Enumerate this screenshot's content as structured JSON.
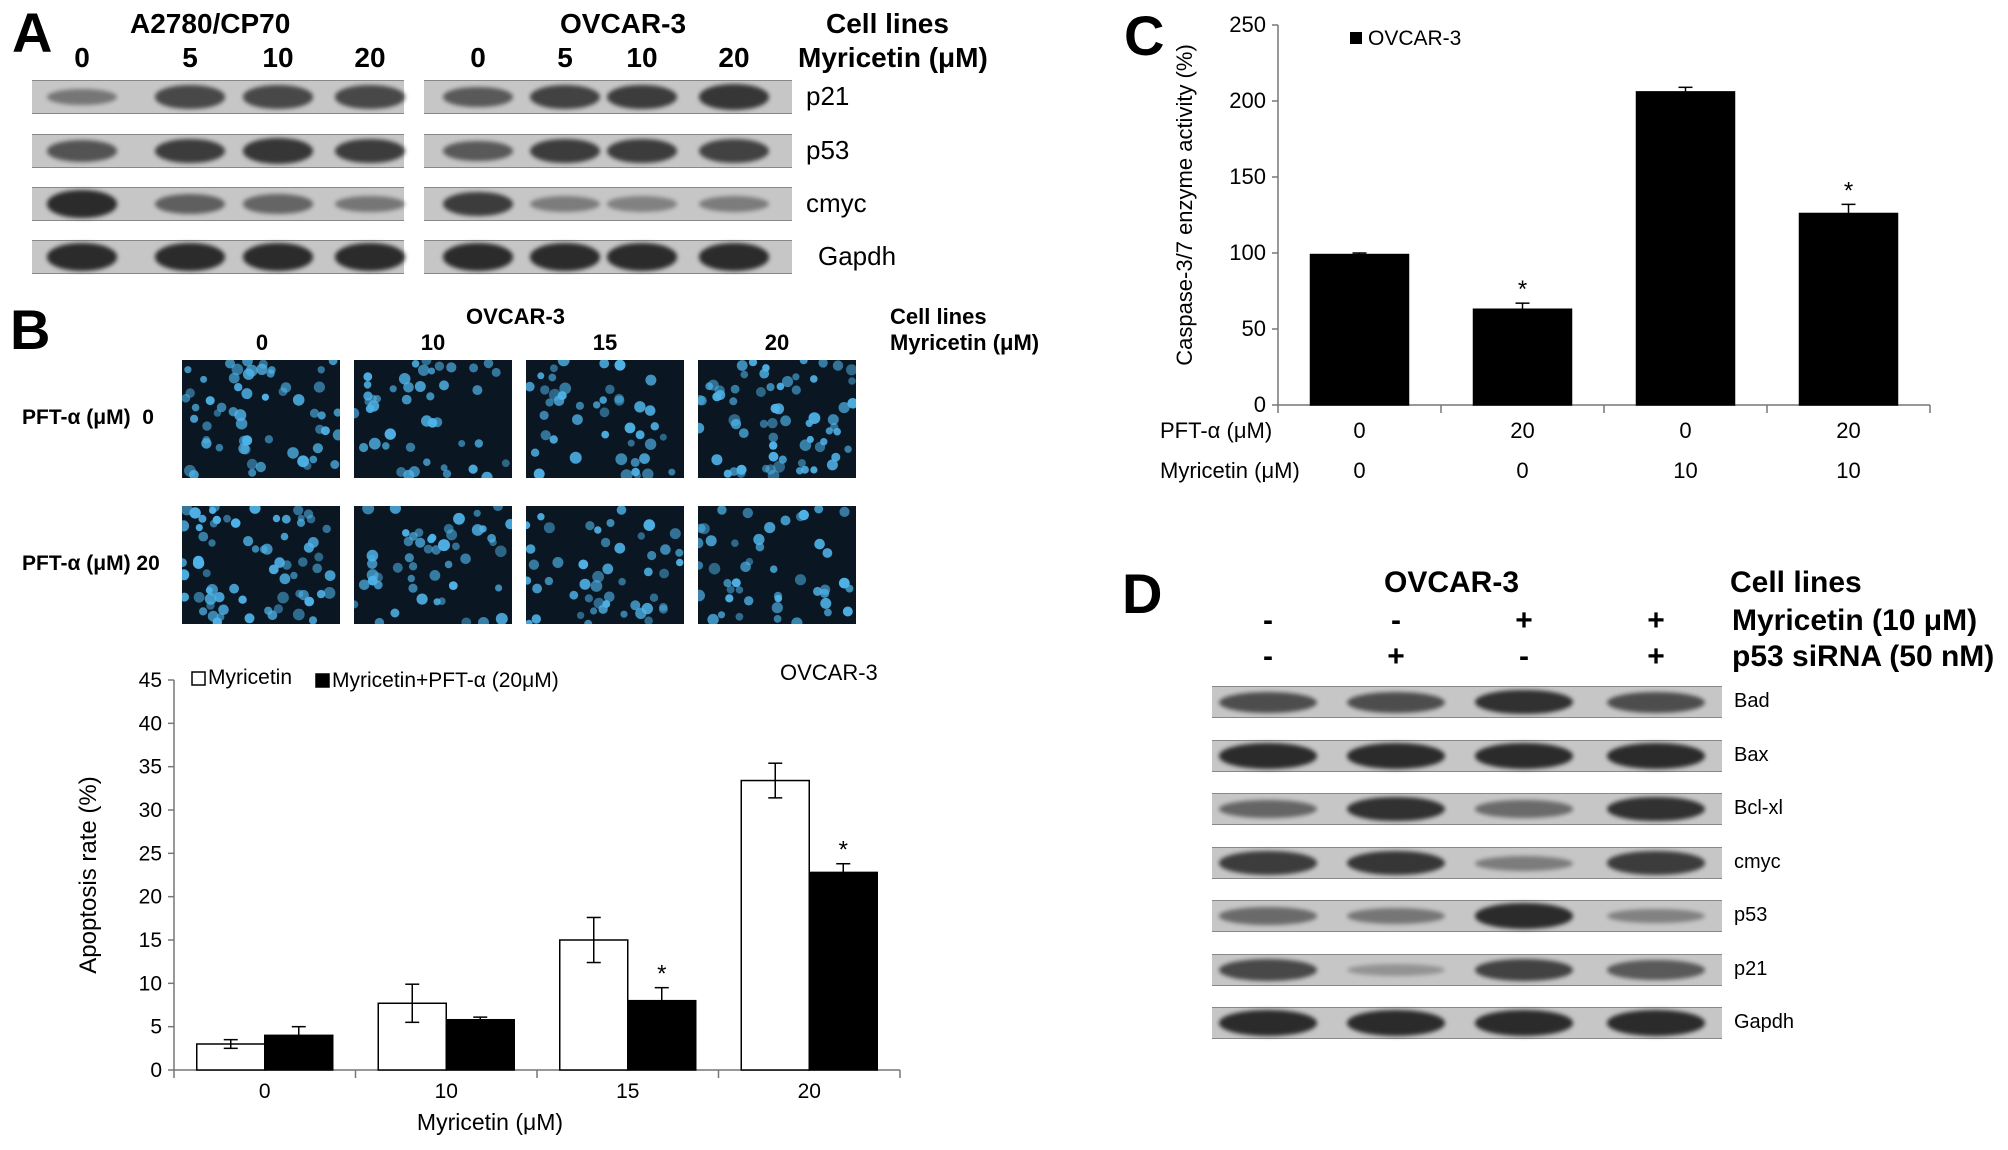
{
  "colors": {
    "blot_bg": "#c6c6c6",
    "band": "#2b2b2b",
    "cell": "#4fb3e8",
    "micro_bg": "#0a1622",
    "filled": "#000000",
    "open": "#ffffff"
  },
  "panel_a": {
    "letter": "A",
    "group1": "A2780/CP70",
    "group2": "OVCAR-3",
    "cell_lines_label": "Cell lines",
    "dose_label": "Myricetin (μM)",
    "doses": [
      "0",
      "5",
      "10",
      "20"
    ],
    "rows": [
      {
        "name": "p21",
        "g1": [
          0.35,
          0.75,
          0.75,
          0.75
        ],
        "g2": [
          0.6,
          0.8,
          0.85,
          0.9
        ]
      },
      {
        "name": "p53",
        "g1": [
          0.65,
          0.85,
          0.9,
          0.85
        ],
        "g2": [
          0.6,
          0.85,
          0.85,
          0.8
        ]
      },
      {
        "name": "cmyc",
        "g1": [
          1.0,
          0.55,
          0.5,
          0.35
        ],
        "g2": [
          0.85,
          0.3,
          0.25,
          0.3
        ]
      },
      {
        "name": "Gapdh",
        "g1": [
          1.0,
          1.0,
          1.0,
          1.0
        ],
        "g2": [
          1.0,
          1.0,
          1.0,
          1.0
        ]
      }
    ]
  },
  "panel_b": {
    "letter": "B",
    "header": "OVCAR-3",
    "cell_lines_label": "Cell lines",
    "dose_label": "Myricetin (μM)",
    "doses": [
      "0",
      "10",
      "15",
      "20"
    ],
    "row_labels": [
      "PFT-α (μM)  0",
      "PFT-α (μM) 20"
    ]
  },
  "panel_c": {
    "letter": "C"
  },
  "panel_d": {
    "letter": "D",
    "header": "OVCAR-3",
    "cell_lines_label": "Cell lines",
    "treat1_label": "Myricetin (10 μM)",
    "treat2_label": "p53 siRNA (50 nM)",
    "treat1": [
      "-",
      "-",
      "+",
      "+"
    ],
    "treat2": [
      "-",
      "+",
      "-",
      "+"
    ],
    "rows": [
      {
        "name": "Bad",
        "v": [
          0.7,
          0.7,
          0.95,
          0.7
        ]
      },
      {
        "name": "Bax",
        "v": [
          1.0,
          1.0,
          1.0,
          1.0
        ]
      },
      {
        "name": "Bcl-xl",
        "v": [
          0.5,
          0.95,
          0.45,
          0.95
        ]
      },
      {
        "name": "cmyc",
        "v": [
          0.85,
          0.9,
          0.3,
          0.85
        ]
      },
      {
        "name": "p53",
        "v": [
          0.45,
          0.35,
          1.0,
          0.25
        ]
      },
      {
        "name": "p21",
        "v": [
          0.75,
          0.1,
          0.8,
          0.6
        ]
      },
      {
        "name": "Gapdh",
        "v": [
          1.0,
          1.0,
          1.0,
          1.0
        ]
      }
    ]
  },
  "chart_data": [
    {
      "type": "bar",
      "panel": "B",
      "title": "OVCAR-3",
      "xlabel": "Myricetin (μM)",
      "ylabel": "Apoptosis rate  (%)",
      "categories": [
        "0",
        "10",
        "15",
        "20"
      ],
      "ylim": [
        0,
        45
      ],
      "yticks": [
        "0",
        "5",
        "10",
        "15",
        "20",
        "25",
        "30",
        "35",
        "40",
        "45"
      ],
      "legend_position": "top",
      "series": [
        {
          "name": "Myricetin",
          "fill": "#ffffff",
          "values": [
            3.0,
            7.7,
            15.0,
            33.4
          ],
          "errors": [
            0.5,
            2.2,
            2.6,
            2.0
          ],
          "marks": [
            "",
            "",
            "",
            ""
          ]
        },
        {
          "name": "Myricetin+PFT-α (20μM)",
          "fill": "#000000",
          "values": [
            4.0,
            5.8,
            8.0,
            22.8
          ],
          "errors": [
            1.0,
            0.3,
            1.5,
            1.0
          ],
          "marks": [
            "",
            "",
            "*",
            "*"
          ]
        }
      ]
    },
    {
      "type": "bar",
      "panel": "C",
      "ylabel": "Caspase-3/7 enzyme activity (%)",
      "ylim": [
        0,
        250
      ],
      "yticks": [
        "0",
        "50",
        "100",
        "150",
        "200",
        "250"
      ],
      "legend_position": "top-left",
      "row_labels": [
        "PFT-α (μM)",
        "Myricetin (μM)"
      ],
      "categories": [
        [
          "0",
          "0"
        ],
        [
          "20",
          "0"
        ],
        [
          "0",
          "10"
        ],
        [
          "20",
          "10"
        ]
      ],
      "series": [
        {
          "name": "OVCAR-3",
          "fill": "#000000",
          "values": [
            99,
            63,
            206,
            126
          ],
          "errors": [
            1,
            4,
            3,
            6
          ],
          "marks": [
            "",
            "*",
            "",
            "*"
          ]
        }
      ]
    }
  ]
}
